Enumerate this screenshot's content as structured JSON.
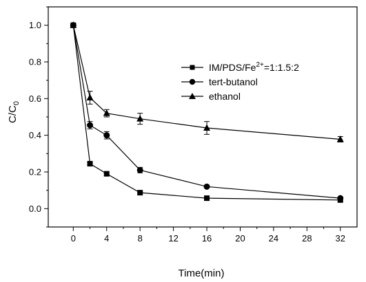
{
  "chart_data": {
    "type": "line",
    "xlabel": "Time(min)",
    "ylabel_main": "C/C",
    "ylabel_sub": "0",
    "xlim": [
      -3,
      34
    ],
    "ylim": [
      -0.1,
      1.1
    ],
    "x_ticks": [
      0,
      4,
      8,
      12,
      16,
      20,
      24,
      28,
      32
    ],
    "y_ticks": [
      0.0,
      0.2,
      0.4,
      0.6,
      0.8,
      1.0
    ],
    "x_tick_labels": [
      "0",
      "4",
      "8",
      "12",
      "16",
      "20",
      "24",
      "28",
      "32"
    ],
    "y_tick_labels": [
      "0.0",
      "0.2",
      "0.4",
      "0.6",
      "0.8",
      "1.0"
    ],
    "grid": false,
    "legend_position": "upper-right",
    "legend": {
      "series1_main": "IM/PDS/Fe",
      "series1_sup": "2+",
      "series1_tail": "=1:1.5:2",
      "series2": "tert-butanol",
      "series3": "ethanol"
    },
    "series": [
      {
        "marker": "square",
        "x": [
          0,
          2,
          4,
          8,
          16,
          32
        ],
        "y": [
          1.0,
          0.245,
          0.19,
          0.087,
          0.057,
          0.047
        ],
        "err": [
          0,
          0,
          0,
          0,
          0,
          0
        ]
      },
      {
        "marker": "circle",
        "x": [
          0,
          2,
          4,
          8,
          16,
          32
        ],
        "y": [
          1.0,
          0.455,
          0.4,
          0.21,
          0.12,
          0.057
        ],
        "err": [
          0,
          0.02,
          0.02,
          0.015,
          0,
          0
        ]
      },
      {
        "marker": "triangle",
        "x": [
          0,
          2,
          4,
          8,
          16,
          32
        ],
        "y": [
          1.0,
          0.605,
          0.52,
          0.49,
          0.44,
          0.378
        ],
        "err": [
          0,
          0.035,
          0.02,
          0.03,
          0.035,
          0.015
        ]
      }
    ]
  }
}
